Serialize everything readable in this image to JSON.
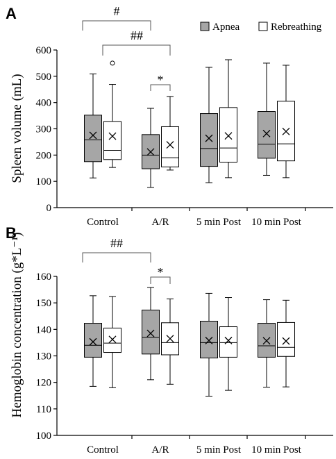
{
  "legend": {
    "apnea_label": "Apnea",
    "rebreathing_label": "Rebreathing",
    "apnea_color": "#a6a6a6",
    "rebreathing_color": "#ffffff"
  },
  "chart_data": [
    {
      "panel": "A",
      "type": "box",
      "ylabel": "Spleen volume (mL)",
      "ylim": [
        0,
        600
      ],
      "yticks": [
        "0",
        "100",
        "200",
        "300",
        "400",
        "500",
        "600"
      ],
      "categories": [
        "Control",
        "A/R",
        "5 min Post",
        "10 min Post"
      ],
      "series": [
        {
          "name": "Apnea",
          "boxes": [
            {
              "min": 113,
              "q1": 175,
              "median": 258,
              "q3": 352,
              "max": 509,
              "mean": 275
            },
            {
              "min": 77,
              "q1": 148,
              "median": 200,
              "q3": 278,
              "max": 378,
              "mean": 212
            },
            {
              "min": 95,
              "q1": 157,
              "median": 225,
              "q3": 358,
              "max": 534,
              "mean": 264
            },
            {
              "min": 123,
              "q1": 188,
              "median": 242,
              "q3": 366,
              "max": 550,
              "mean": 282
            }
          ]
        },
        {
          "name": "Rebreathing",
          "boxes": [
            {
              "min": 153,
              "q1": 183,
              "median": 218,
              "q3": 328,
              "max": 469,
              "mean": 272,
              "outliers": [
                550
              ]
            },
            {
              "min": 143,
              "q1": 155,
              "median": 190,
              "q3": 308,
              "max": 423,
              "mean": 239
            },
            {
              "min": 114,
              "q1": 173,
              "median": 227,
              "q3": 381,
              "max": 563,
              "mean": 273
            },
            {
              "min": 114,
              "q1": 178,
              "median": 243,
              "q3": 405,
              "max": 542,
              "mean": 290
            }
          ]
        }
      ],
      "annotations": [
        {
          "text": "#",
          "from": "Control",
          "to": "A/R"
        },
        {
          "text": "##",
          "from": "Control",
          "to": "A/R"
        },
        {
          "text": "*",
          "from": "A/R",
          "to": "A/R"
        }
      ]
    },
    {
      "panel": "B",
      "type": "box",
      "ylabel": "Hemoglobin concentration (g*L⁻¹)",
      "ylim": [
        100,
        160
      ],
      "yticks": [
        "100",
        "110",
        "120",
        "130",
        "140",
        "150",
        "160"
      ],
      "categories": [
        "Control",
        "A/R",
        "5 min Post",
        "10 min Post"
      ],
      "series": [
        {
          "name": "Apnea",
          "boxes": [
            {
              "min": 118.5,
              "q1": 129.5,
              "median": 134,
              "q3": 142.3,
              "max": 152.7,
              "mean": 135.3
            },
            {
              "min": 121,
              "q1": 130.7,
              "median": 137,
              "q3": 147.3,
              "max": 155.8,
              "mean": 138.5
            },
            {
              "min": 114.8,
              "q1": 129.2,
              "median": 135,
              "q3": 143.1,
              "max": 153.6,
              "mean": 135.8
            },
            {
              "min": 118.2,
              "q1": 129.5,
              "median": 133.8,
              "q3": 142.3,
              "max": 151.2,
              "mean": 135.7
            }
          ]
        },
        {
          "name": "Rebreathing",
          "boxes": [
            {
              "min": 118,
              "q1": 131.3,
              "median": 134.8,
              "q3": 140.5,
              "max": 152.4,
              "mean": 136.2
            },
            {
              "min": 119.3,
              "q1": 130.4,
              "median": 135,
              "q3": 142.5,
              "max": 151.5,
              "mean": 136.5
            },
            {
              "min": 117,
              "q1": 129.5,
              "median": 135,
              "q3": 141,
              "max": 152,
              "mean": 135.8
            },
            {
              "min": 118.3,
              "q1": 129.8,
              "median": 133.2,
              "q3": 142.6,
              "max": 151,
              "mean": 135.6
            }
          ]
        }
      ],
      "annotations": [
        {
          "text": "##",
          "from": "Control",
          "to": "A/R"
        },
        {
          "text": "*",
          "from": "A/R",
          "to": "A/R"
        }
      ]
    }
  ]
}
